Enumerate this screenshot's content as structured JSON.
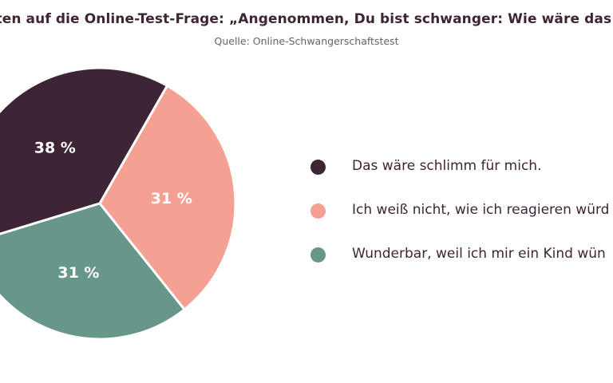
{
  "chart_data": {
    "type": "pie",
    "title": "rten auf die Online-Test-Frage: „Angenommen, Du bist schwanger: Wie wäre das für",
    "subtitle": "Quelle: Online-Schwangerschaftstest",
    "slices": [
      {
        "label": "Das wäre schlimm für mich.",
        "value": 38,
        "value_label": "38 %",
        "color": "#3d2535"
      },
      {
        "label": "Ich weiß nicht, wie ich reagieren würd",
        "value": 31,
        "value_label": "31 %",
        "color": "#f4a092"
      },
      {
        "label": "Wunderbar, weil ich mir ein Kind wün",
        "value": 31,
        "value_label": "31 %",
        "color": "#66978a"
      }
    ],
    "legend_position": "right"
  }
}
